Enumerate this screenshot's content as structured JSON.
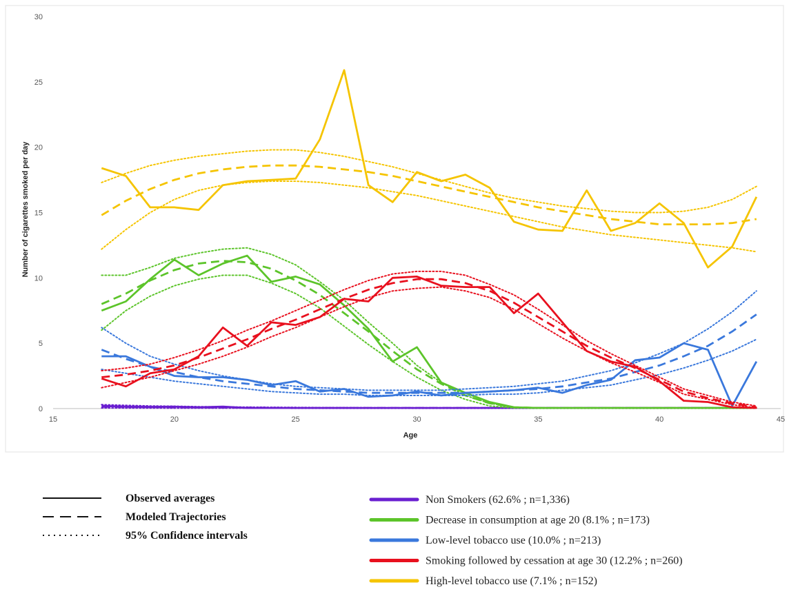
{
  "chart_data": {
    "type": "line",
    "xlabel": "Age",
    "ylabel": "Number of cigarettes smoked per day",
    "xlim": [
      15,
      45
    ],
    "ylim": [
      0,
      30
    ],
    "x_ticks": [
      15,
      20,
      25,
      30,
      35,
      40,
      45
    ],
    "y_ticks": [
      0,
      5,
      10,
      15,
      20,
      25,
      30
    ],
    "grid": false,
    "legend_placement": "bottom",
    "line_styles": [
      {
        "key": "observed",
        "label": "Observed averages"
      },
      {
        "key": "modeled",
        "label": "Modeled Trajectories"
      },
      {
        "key": "ci",
        "label": "95% Confidence intervals"
      }
    ],
    "x": [
      17,
      18,
      19,
      20,
      21,
      22,
      23,
      24,
      25,
      26,
      27,
      28,
      29,
      30,
      31,
      32,
      33,
      34,
      35,
      36,
      37,
      38,
      39,
      40,
      41,
      42,
      43,
      44
    ],
    "series": [
      {
        "name": "Non Smokers (62.6% ; n=1,336)",
        "color": "#6a1fd0",
        "observed": [
          0.2,
          0.15,
          0.12,
          0.15,
          0.1,
          0.15,
          0.05,
          0.05,
          0.05,
          0.05,
          0.05,
          0.05,
          0.05,
          0.05,
          0.05,
          0.05,
          0.05,
          0.05,
          0.05,
          0.05,
          0.05,
          0.05,
          0.05,
          0.05,
          0.05,
          0.05,
          0.05,
          0.05
        ],
        "modeled": [
          0.15,
          0.13,
          0.12,
          0.1,
          0.09,
          0.08,
          0.07,
          0.06,
          0.05,
          0.05,
          0.05,
          0.05,
          0.05,
          0.05,
          0.05,
          0.05,
          0.05,
          0.05,
          0.05,
          0.05,
          0.05,
          0.05,
          0.05,
          0.05,
          0.05,
          0.05,
          0.05,
          0.05
        ],
        "ci_upper": [
          0.3,
          0.25,
          0.2,
          0.18,
          0.15,
          0.13,
          0.11,
          0.1,
          0.09,
          0.08,
          0.08,
          0.07,
          0.07,
          0.07,
          0.07,
          0.07,
          0.07,
          0.07,
          0.07,
          0.07,
          0.07,
          0.07,
          0.07,
          0.07,
          0.07,
          0.07,
          0.07,
          0.07
        ],
        "ci_lower": [
          0.05,
          0.04,
          0.04,
          0.03,
          0.03,
          0.03,
          0.03,
          0.03,
          0.02,
          0.02,
          0.02,
          0.02,
          0.02,
          0.02,
          0.02,
          0.02,
          0.02,
          0.02,
          0.02,
          0.02,
          0.02,
          0.02,
          0.02,
          0.02,
          0.02,
          0.02,
          0.02,
          0.02
        ]
      },
      {
        "name": "Decrease in consumption at age 20 (8.1% ; n=173)",
        "color": "#5cc42a",
        "observed": [
          7.5,
          8.2,
          9.9,
          11.4,
          10.2,
          11.1,
          11.7,
          9.7,
          10.1,
          9.5,
          7.9,
          6.1,
          3.6,
          4.7,
          2.0,
          1.2,
          0.5,
          0.1,
          0.05,
          0.05,
          0.05,
          0.05,
          0.05,
          0.05,
          0.05,
          0.05,
          0.05,
          0.05
        ],
        "modeled": [
          8.0,
          8.8,
          9.8,
          10.6,
          11.1,
          11.3,
          11.2,
          10.7,
          9.8,
          8.7,
          7.3,
          5.9,
          4.4,
          3.0,
          1.9,
          1.0,
          0.4,
          0.1,
          0.05,
          0.05,
          0.05,
          0.05,
          0.05,
          0.05,
          0.05,
          0.05,
          0.05,
          0.05
        ],
        "ci_upper": [
          10.2,
          10.2,
          10.8,
          11.5,
          11.9,
          12.2,
          12.3,
          11.8,
          11.0,
          9.7,
          8.3,
          6.6,
          5.0,
          3.3,
          2.0,
          1.0,
          0.4,
          0.1,
          0.05,
          0.05,
          0.05,
          0.05,
          0.05,
          0.05,
          0.05,
          0.05,
          0.05,
          0.05
        ],
        "ci_lower": [
          6.0,
          7.5,
          8.6,
          9.4,
          9.9,
          10.2,
          10.2,
          9.6,
          8.8,
          7.7,
          6.3,
          4.9,
          3.6,
          2.4,
          1.4,
          0.7,
          0.2,
          0.05,
          0.05,
          0.05,
          0.05,
          0.05,
          0.05,
          0.05,
          0.05,
          0.05,
          0.05,
          0.05
        ]
      },
      {
        "name": "Low-level tobacco use (10.0% ; n=213)",
        "color": "#3a78dc",
        "observed": [
          4.0,
          4.0,
          3.2,
          2.5,
          2.4,
          2.4,
          2.2,
          1.8,
          2.1,
          1.3,
          1.5,
          0.9,
          1.0,
          1.3,
          1.0,
          1.2,
          1.3,
          1.4,
          1.6,
          1.2,
          1.8,
          2.2,
          3.7,
          3.9,
          5.0,
          4.5,
          0.2,
          3.6
        ],
        "modeled": [
          4.5,
          3.8,
          3.2,
          2.8,
          2.4,
          2.1,
          1.9,
          1.7,
          1.5,
          1.4,
          1.3,
          1.2,
          1.2,
          1.2,
          1.2,
          1.2,
          1.3,
          1.4,
          1.5,
          1.7,
          2.0,
          2.3,
          2.8,
          3.3,
          4.0,
          4.8,
          5.9,
          7.2
        ],
        "ci_upper": [
          6.2,
          5.0,
          4.0,
          3.4,
          2.9,
          2.5,
          2.2,
          1.9,
          1.7,
          1.6,
          1.5,
          1.4,
          1.4,
          1.4,
          1.4,
          1.5,
          1.6,
          1.7,
          1.9,
          2.1,
          2.5,
          2.9,
          3.5,
          4.2,
          5.0,
          6.1,
          7.4,
          9.0
        ],
        "ci_lower": [
          3.0,
          2.7,
          2.4,
          2.1,
          1.9,
          1.7,
          1.5,
          1.3,
          1.2,
          1.1,
          1.1,
          1.0,
          1.0,
          1.0,
          1.0,
          1.0,
          1.1,
          1.1,
          1.2,
          1.4,
          1.6,
          1.8,
          2.2,
          2.6,
          3.1,
          3.7,
          4.4,
          5.3
        ]
      },
      {
        "name": "Smoking followed by cessation at age 30 (12.2% ; n=260)",
        "color": "#e8101e",
        "observed": [
          2.3,
          1.7,
          2.7,
          3.0,
          4.0,
          6.2,
          4.8,
          6.6,
          6.4,
          7.0,
          8.4,
          8.2,
          10.0,
          10.1,
          9.4,
          9.3,
          9.3,
          7.3,
          8.8,
          6.6,
          4.4,
          3.6,
          3.2,
          2.1,
          0.6,
          0.5,
          0.1,
          0.05
        ],
        "modeled": [
          2.4,
          2.6,
          2.9,
          3.3,
          3.9,
          4.6,
          5.3,
          6.1,
          6.8,
          7.6,
          8.4,
          9.1,
          9.6,
          9.9,
          9.9,
          9.6,
          9.0,
          8.1,
          7.0,
          5.9,
          4.8,
          3.9,
          3.1,
          2.2,
          1.3,
          0.8,
          0.4,
          0.1
        ],
        "ci_upper": [
          2.9,
          3.1,
          3.4,
          3.9,
          4.5,
          5.2,
          6.0,
          6.7,
          7.5,
          8.3,
          9.1,
          9.8,
          10.3,
          10.5,
          10.5,
          10.2,
          9.5,
          8.7,
          7.6,
          6.4,
          5.2,
          4.2,
          3.3,
          2.4,
          1.5,
          1.0,
          0.5,
          0.2
        ],
        "ci_lower": [
          1.6,
          2.0,
          2.4,
          2.9,
          3.4,
          4.0,
          4.7,
          5.5,
          6.2,
          7.0,
          7.8,
          8.5,
          9.0,
          9.2,
          9.3,
          9.0,
          8.5,
          7.6,
          6.5,
          5.4,
          4.4,
          3.5,
          2.8,
          2.0,
          1.1,
          0.7,
          0.3,
          0.05
        ]
      },
      {
        "name": "High-level tobacco use (7.1% ; n=152)",
        "color": "#f5c400",
        "observed": [
          18.4,
          17.8,
          15.4,
          15.4,
          15.2,
          17.1,
          17.4,
          17.5,
          17.6,
          20.6,
          25.9,
          17.1,
          15.8,
          18.1,
          17.4,
          17.9,
          16.9,
          14.3,
          13.7,
          13.6,
          16.7,
          13.6,
          14.2,
          15.7,
          14.2,
          10.8,
          12.4,
          16.2
        ],
        "modeled": [
          14.8,
          15.9,
          16.8,
          17.5,
          18.0,
          18.3,
          18.5,
          18.6,
          18.6,
          18.5,
          18.3,
          18.1,
          17.8,
          17.4,
          17.0,
          16.6,
          16.2,
          15.8,
          15.4,
          15.1,
          14.8,
          14.5,
          14.3,
          14.1,
          14.1,
          14.1,
          14.2,
          14.5
        ],
        "ci_upper": [
          17.3,
          18.0,
          18.6,
          19.0,
          19.3,
          19.5,
          19.7,
          19.8,
          19.8,
          19.6,
          19.3,
          18.9,
          18.5,
          18.0,
          17.5,
          17.0,
          16.5,
          16.1,
          15.8,
          15.5,
          15.3,
          15.1,
          15.0,
          15.0,
          15.1,
          15.4,
          16.0,
          17.0
        ],
        "ci_lower": [
          12.2,
          13.7,
          15.0,
          16.0,
          16.7,
          17.1,
          17.3,
          17.4,
          17.4,
          17.3,
          17.1,
          16.9,
          16.6,
          16.3,
          15.9,
          15.5,
          15.1,
          14.7,
          14.3,
          13.9,
          13.6,
          13.3,
          13.1,
          12.9,
          12.7,
          12.5,
          12.3,
          12.0
        ]
      }
    ]
  }
}
